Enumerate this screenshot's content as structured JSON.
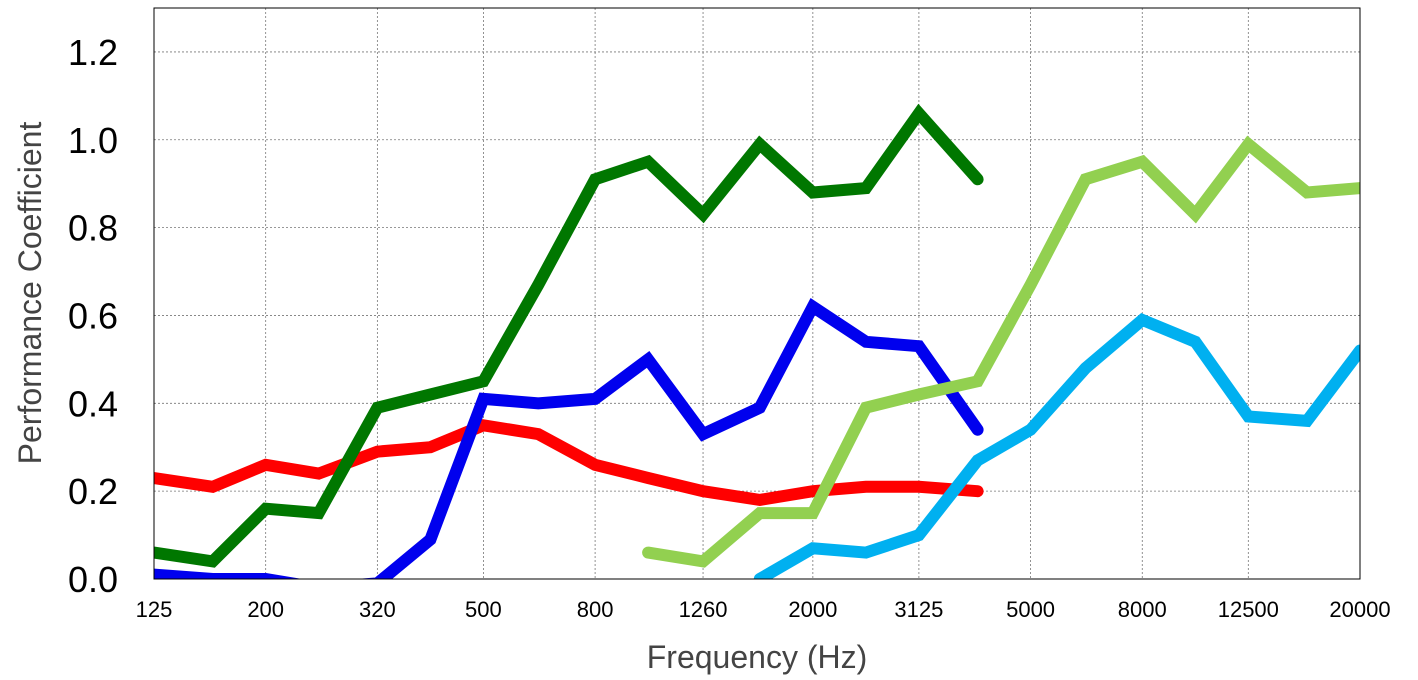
{
  "chart_data": {
    "type": "line",
    "xlabel": "Frequency (Hz)",
    "ylabel": "Performance Coefficient",
    "x_tick_labels": [
      "125",
      "200",
      "320",
      "500",
      "800",
      "1260",
      "2000",
      "3125",
      "5000",
      "8000",
      "12500",
      "20000"
    ],
    "x_tick_values": [
      125,
      200,
      320,
      500,
      800,
      1260,
      2000,
      3125,
      5000,
      8000,
      12500,
      20000
    ],
    "y_tick_labels": [
      "0.0",
      "0.2",
      "0.4",
      "0.6",
      "0.8",
      "1.0",
      "1.2"
    ],
    "y_tick_values": [
      0.0,
      0.2,
      0.4,
      0.6,
      0.8,
      1.0,
      1.2
    ],
    "ylim": [
      0,
      1.3
    ],
    "xscale": "log",
    "grid": true,
    "series": [
      {
        "color": "#ff0000",
        "x": [
          125,
          160,
          200,
          250,
          320,
          400,
          500,
          630,
          800,
          1000,
          1260,
          1600,
          2000,
          2500,
          3125,
          4000
        ],
        "values": [
          0.23,
          0.21,
          0.26,
          0.24,
          0.29,
          0.3,
          0.35,
          0.33,
          0.26,
          0.23,
          0.2,
          0.18,
          0.2,
          0.21,
          0.21,
          0.2
        ]
      },
      {
        "color": "#0000ee",
        "x": [
          125,
          160,
          200,
          250,
          320,
          400,
          500,
          630,
          800,
          1000,
          1260,
          1600,
          2000,
          2500,
          3125,
          4000
        ],
        "values": [
          0.01,
          0.0,
          0.0,
          -0.02,
          -0.01,
          0.09,
          0.41,
          0.4,
          0.41,
          0.5,
          0.33,
          0.39,
          0.62,
          0.54,
          0.53,
          0.34
        ]
      },
      {
        "color": "#007700",
        "x": [
          125,
          160,
          200,
          250,
          320,
          400,
          500,
          630,
          800,
          1000,
          1260,
          1600,
          2000,
          2500,
          3125,
          4000
        ],
        "values": [
          0.06,
          0.04,
          0.16,
          0.15,
          0.39,
          0.42,
          0.45,
          0.67,
          0.91,
          0.95,
          0.83,
          0.99,
          0.88,
          0.89,
          1.06,
          0.91
        ]
      },
      {
        "color": "#00b0f0",
        "x": [
          1600,
          2000,
          2500,
          3125,
          4000,
          5000,
          6300,
          8000,
          10000,
          12500,
          16000,
          20000
        ],
        "values": [
          0.0,
          0.07,
          0.06,
          0.1,
          0.27,
          0.34,
          0.48,
          0.59,
          0.54,
          0.37,
          0.36,
          0.52
        ]
      },
      {
        "color": "#92d050",
        "x": [
          1000,
          1260,
          1600,
          2000,
          2500,
          3125,
          4000,
          5000,
          6300,
          8000,
          10000,
          12500,
          16000,
          20000
        ],
        "values": [
          0.06,
          0.04,
          0.15,
          0.15,
          0.39,
          0.42,
          0.45,
          0.67,
          0.91,
          0.95,
          0.83,
          0.99,
          0.88,
          0.89
        ]
      }
    ]
  }
}
